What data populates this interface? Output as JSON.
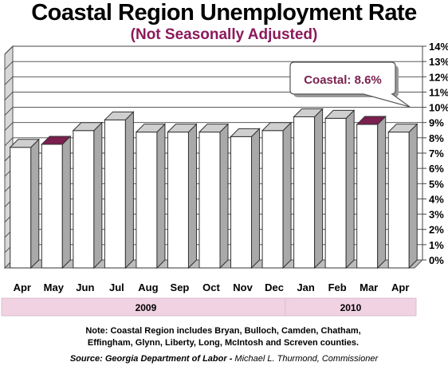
{
  "title": "Coastal Region Unemployment Rate",
  "subtitle": "(Not Seasonally Adjusted)",
  "colors": {
    "bar": "#ffffff",
    "highlight": "#7a1f4e",
    "subtitle": "#8b1a5a",
    "band": "#f0d2e2"
  },
  "chart_data": {
    "type": "bar",
    "categories": [
      "Apr",
      "May",
      "Jun",
      "Jul",
      "Aug",
      "Sep",
      "Oct",
      "Nov",
      "Dec",
      "Jan",
      "Feb",
      "Mar",
      "Apr"
    ],
    "values": [
      7.9,
      8.1,
      9.0,
      9.7,
      8.9,
      8.9,
      8.9,
      8.6,
      9.0,
      9.9,
      9.8,
      9.4,
      8.9
    ],
    "highlight_indices": [
      1,
      11
    ],
    "ylim": [
      0,
      14
    ],
    "yticks": [
      "0%",
      "1%",
      "2%",
      "3%",
      "4%",
      "5%",
      "6%",
      "7%",
      "8%",
      "9%",
      "10%",
      "11%",
      "12%",
      "13%",
      "14%"
    ],
    "grid": true,
    "callout": "Coastal: 8.6%",
    "year_groups": [
      {
        "label": "2009",
        "from": 0,
        "to": 8
      },
      {
        "label": "2010",
        "from": 9,
        "to": 12
      }
    ]
  },
  "note_line1": "Note: Coastal Region includes Bryan, Bulloch, Camden, Chatham,",
  "note_line2": "Effingham, Glynn, Liberty, Long, McIntosh and Screven counties.",
  "source_bold": "Source: Georgia Department of Labor -",
  "source_rest": " Michael L. Thurmond, Commissioner"
}
